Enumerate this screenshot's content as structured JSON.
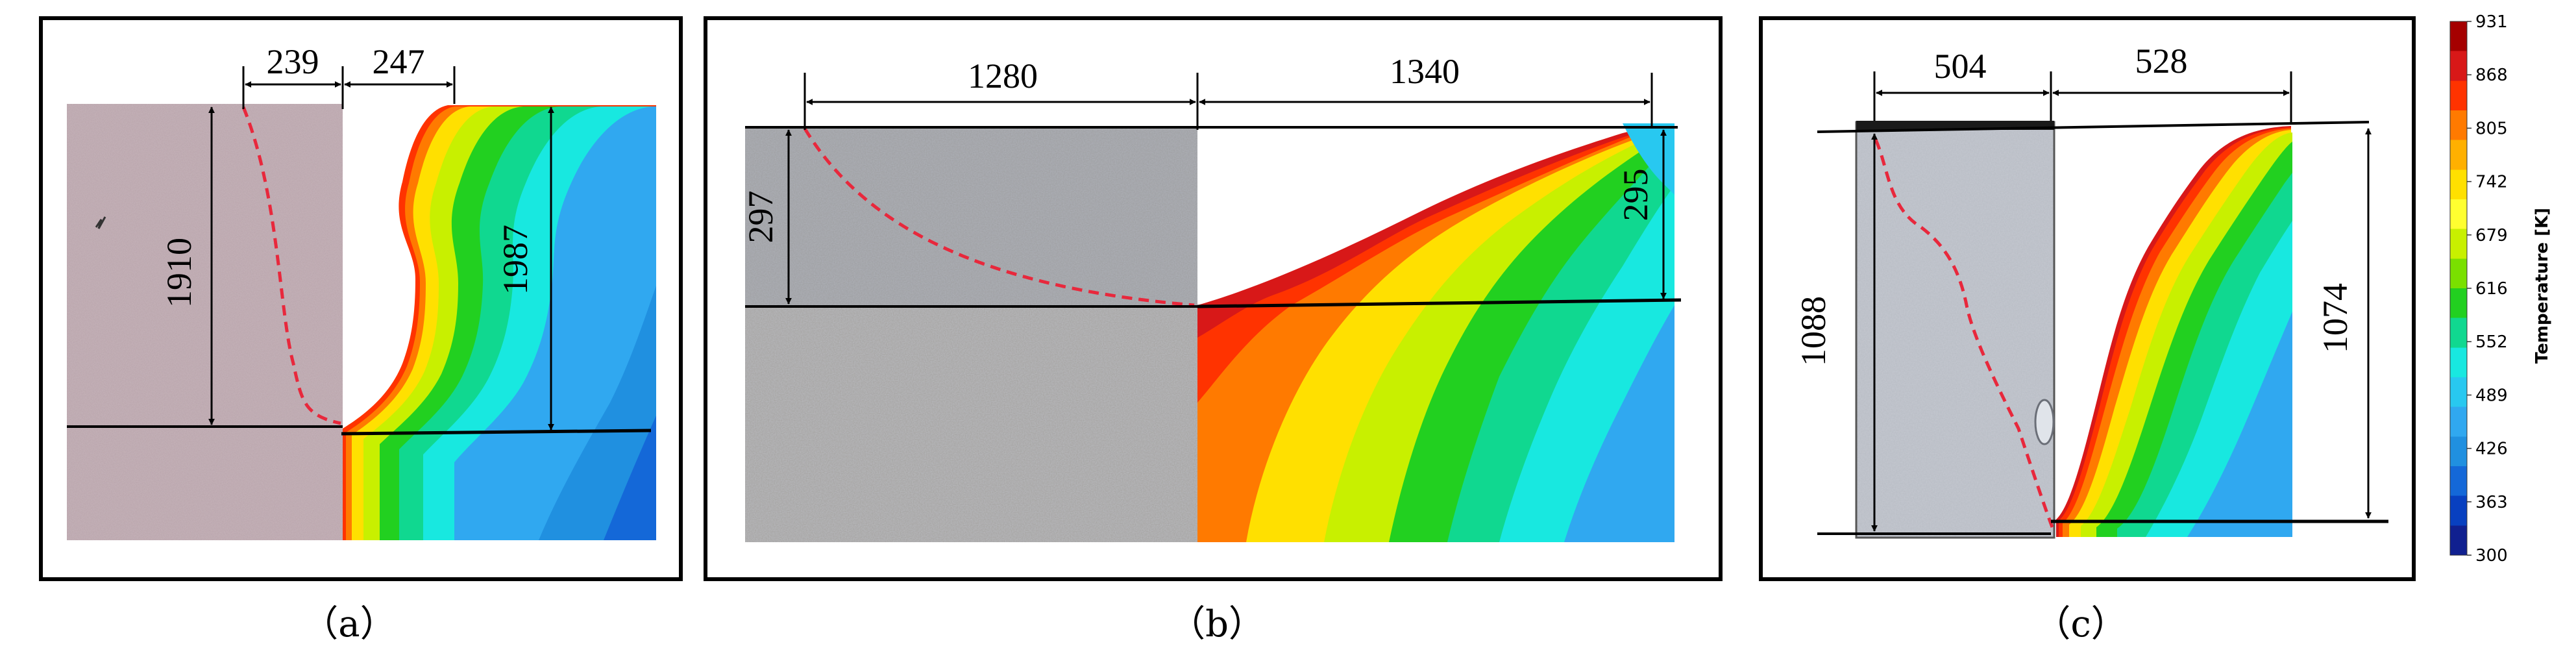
{
  "figure": {
    "panels": [
      {
        "id": "a",
        "caption": "（a）",
        "dims": {
          "top_left": "239",
          "top_right": "247",
          "left_vertical": "1910",
          "right_vertical": "1987"
        }
      },
      {
        "id": "b",
        "caption": "（b）",
        "dims": {
          "top_left": "1280",
          "top_right": "1340",
          "left_vertical": "297",
          "right_vertical": "295"
        }
      },
      {
        "id": "c",
        "caption": "（c）",
        "dims": {
          "top_left": "504",
          "top_right": "528",
          "left_vertical": "1088",
          "right_vertical": "1074"
        }
      }
    ],
    "colorbar": {
      "title": "Temperature [K]",
      "ticks": [
        "931",
        "868",
        "805",
        "742",
        "679",
        "616",
        "552",
        "489",
        "426",
        "363",
        "300"
      ],
      "colors": [
        "#a50000",
        "#d81818",
        "#ff3300",
        "#ff7a00",
        "#ffb000",
        "#ffe000",
        "#ffff30",
        "#c8f000",
        "#7ae000",
        "#22d020",
        "#10d890",
        "#18e8e0",
        "#28c8f0",
        "#30a8f0",
        "#2090e0",
        "#1468d8",
        "#0840c0",
        "#102090"
      ]
    },
    "styles": {
      "micrograph_a": "#b9a4ab",
      "micrograph_b": "#a5a3a1",
      "micrograph_c": "#b8bcc4",
      "fusion_line": "#e8283c"
    }
  }
}
